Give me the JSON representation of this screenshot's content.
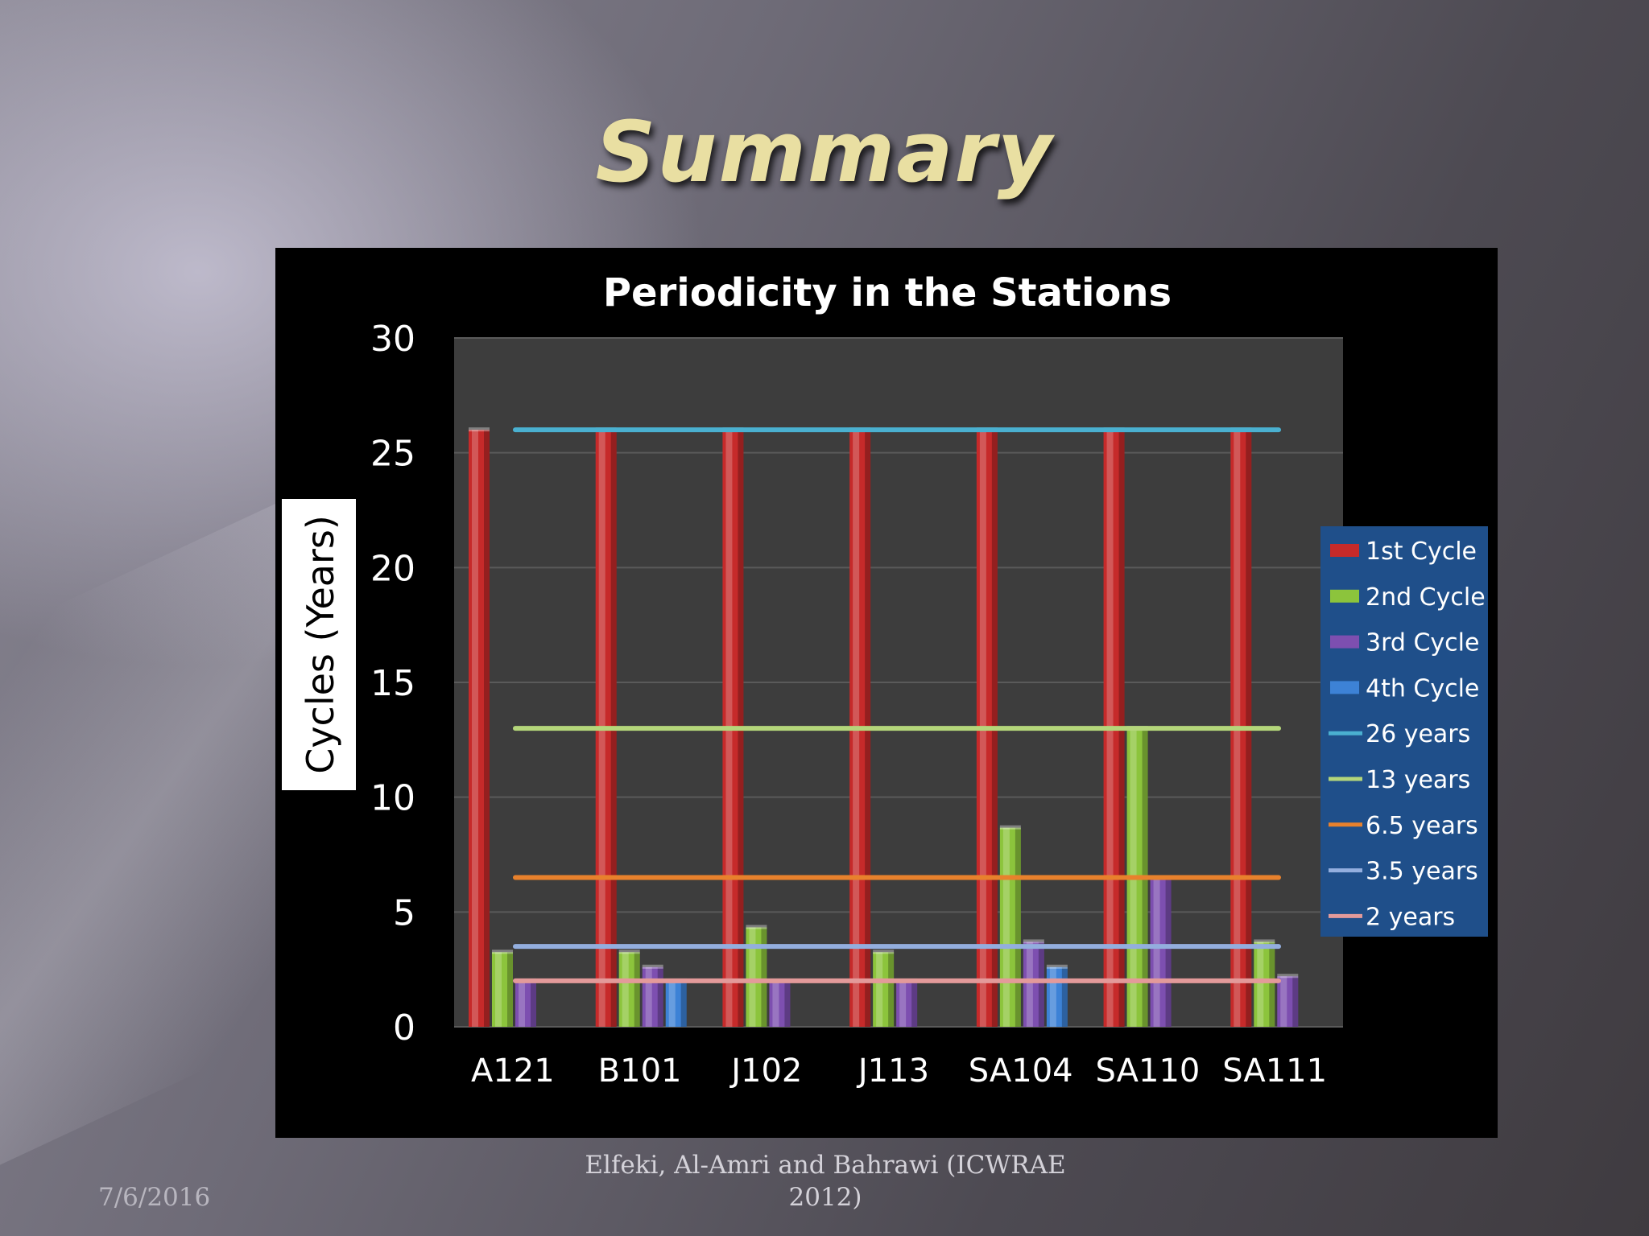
{
  "slide": {
    "title": "Summary",
    "footer_date": "7/6/2016",
    "footer_credit": "Elfeki, Al-Amri and Bahrawi (ICWRAE 2012)"
  },
  "chart_data": {
    "type": "bar",
    "title": "Periodicity in the Stations",
    "xlabel": "",
    "ylabel": "Cycles (Years)",
    "ylim": [
      0,
      30
    ],
    "yticks": [
      0,
      5,
      10,
      15,
      20,
      25,
      30
    ],
    "grid": true,
    "legend_position": "right",
    "categories": [
      "A121",
      "B101",
      "J102",
      "J113",
      "SA104",
      "SA110",
      "SA111"
    ],
    "series": [
      {
        "name": "1st  Cycle",
        "color": "#c62a2a",
        "values": [
          26,
          26,
          26,
          26,
          26,
          26,
          26
        ]
      },
      {
        "name": "2nd Cycle",
        "color": "#8cc43c",
        "values": [
          3.25,
          3.25,
          4.33,
          3.25,
          8.67,
          13,
          3.7
        ]
      },
      {
        "name": "3rd Cycle",
        "color": "#7d4fb0",
        "values": [
          2,
          2.6,
          2,
          2,
          3.7,
          6.5,
          2.2
        ]
      },
      {
        "name": "4th Cycle",
        "color": "#3d82d6",
        "values": [
          null,
          2,
          null,
          null,
          2.6,
          null,
          null
        ]
      }
    ],
    "reference_lines": [
      {
        "name": "26 years",
        "value": 26,
        "color": "#4ab0d0"
      },
      {
        "name": "13 years",
        "value": 13,
        "color": "#b4d67a"
      },
      {
        "name": "6.5 years",
        "value": 6.5,
        "color": "#e8812c"
      },
      {
        "name": "3.5 years",
        "value": 3.5,
        "color": "#93aede"
      },
      {
        "name": "2 years",
        "value": 2,
        "color": "#e39a9a"
      }
    ],
    "colors": {
      "plot_bg": "#3d3d3d",
      "legend_bg": "#1f4f8a",
      "grid": "#5a5a5a"
    }
  }
}
